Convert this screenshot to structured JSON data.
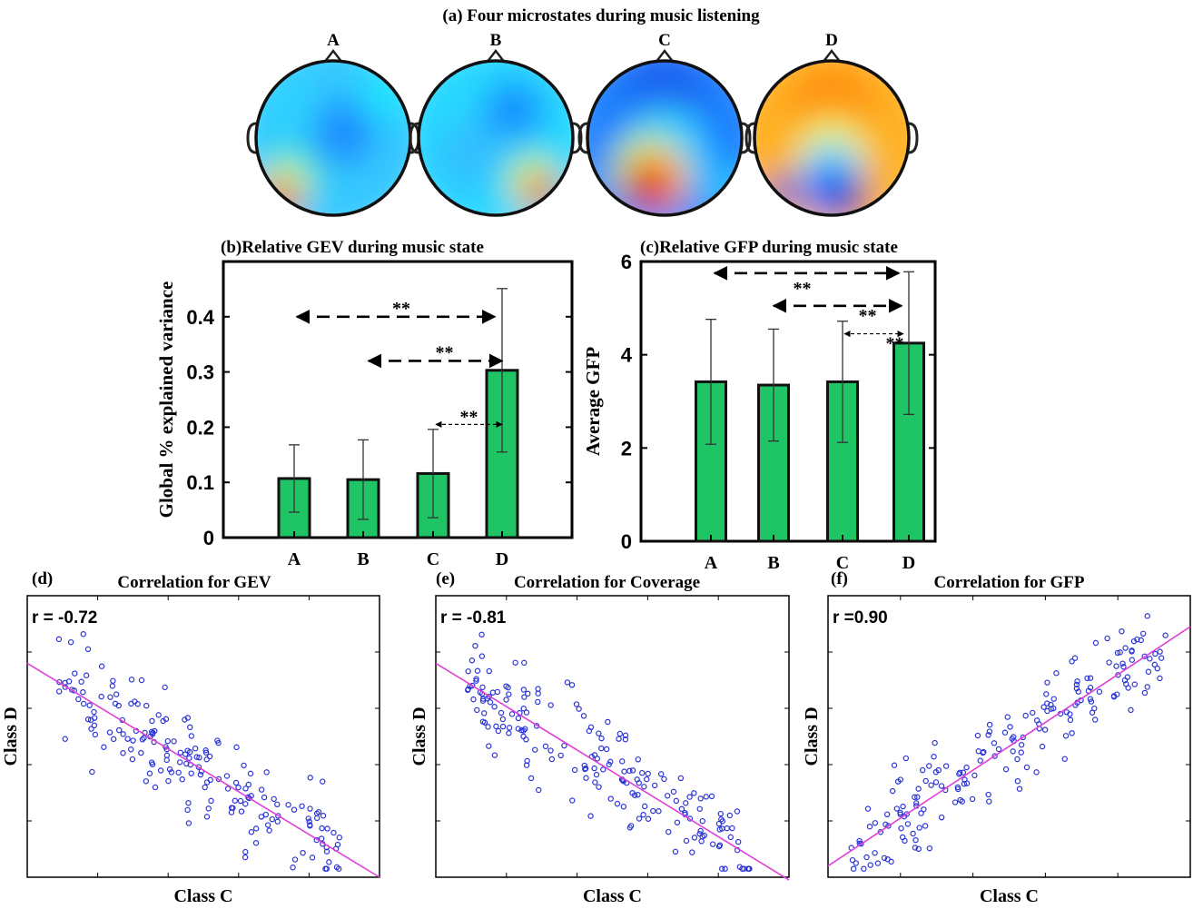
{
  "panel_a": {
    "title": "(a) Four microstates during music listening",
    "maps": [
      {
        "label": "A",
        "description": "blue center, red at lower-left"
      },
      {
        "label": "B",
        "description": "cyan/blue, red at lower-right"
      },
      {
        "label": "C",
        "description": "blue top, red at bottom center"
      },
      {
        "label": "D",
        "description": "orange top, blue bottom"
      }
    ]
  },
  "colors": {
    "bar_fill": "#1fc465",
    "scatter_point": "#2b35d6",
    "fit_line": "#e040d8",
    "axis": "#000000"
  },
  "chart_data": [
    {
      "id": "b",
      "type": "bar",
      "title": "(b)Relative GEV during music state",
      "ylabel": "Global % explained variance",
      "xlabel": "",
      "categories": [
        "A",
        "B",
        "C",
        "D"
      ],
      "values": [
        0.107,
        0.105,
        0.116,
        0.303
      ],
      "errors": [
        0.061,
        0.072,
        0.08,
        0.148
      ],
      "ylim": [
        0,
        0.5
      ],
      "yticks": [
        0,
        0.1,
        0.2,
        0.3,
        0.4
      ],
      "ytick_labels": [
        "0",
        "0.1",
        "0.2",
        "0.3",
        "0.4"
      ],
      "significance": [
        {
          "from": "A",
          "to": "D",
          "label": "**",
          "level": 0.4
        },
        {
          "from": "B",
          "to": "D",
          "label": "**",
          "level": 0.32
        },
        {
          "from": "C",
          "to": "D",
          "label": "**",
          "level": 0.205
        }
      ]
    },
    {
      "id": "c",
      "type": "bar",
      "title": "(c)Relative GFP during music state",
      "ylabel": "Average GFP",
      "xlabel": "",
      "categories": [
        "A",
        "B",
        "C",
        "D"
      ],
      "values": [
        3.42,
        3.35,
        3.42,
        4.25
      ],
      "errors": [
        1.34,
        1.2,
        1.3,
        1.53
      ],
      "ylim": [
        0,
        6
      ],
      "yticks": [
        0,
        2,
        4,
        6
      ],
      "ytick_labels": [
        "0",
        "2",
        "4",
        "6"
      ],
      "significance": [
        {
          "from": "A",
          "to": "D",
          "label": "**",
          "level": 5.75
        },
        {
          "from": "B",
          "to": "D",
          "label": "**",
          "level": 5.05
        },
        {
          "from": "C",
          "to": "D",
          "label": "**",
          "level": 4.45
        }
      ]
    },
    {
      "id": "d",
      "type": "scatter",
      "title": "Correlation for GEV",
      "panel_label": "(d)",
      "xlabel": "Class C",
      "ylabel": "Class D",
      "annotation": "r = -0.72",
      "r": -0.72,
      "xlim": [
        0,
        1
      ],
      "ylim": [
        0,
        1
      ],
      "fit": {
        "slope": -0.76,
        "intercept": 0.76
      },
      "n_points": 190,
      "seed": 11
    },
    {
      "id": "e",
      "type": "scatter",
      "title": "Correlation for Coverage",
      "panel_label": "(e)",
      "xlabel": "Class C",
      "ylabel": "Class D",
      "annotation": "r = -0.81",
      "r": -0.81,
      "xlim": [
        0,
        1
      ],
      "ylim": [
        0,
        1
      ],
      "fit": {
        "slope": -0.77,
        "intercept": 0.76
      },
      "n_points": 190,
      "seed": 23
    },
    {
      "id": "f",
      "type": "scatter",
      "title": "Correlation for GFP",
      "panel_label": "(f)",
      "xlabel": "Class C",
      "ylabel": "Class D",
      "annotation": "r =0.90",
      "r": 0.9,
      "xlim": [
        0,
        1
      ],
      "ylim": [
        0,
        1
      ],
      "fit": {
        "slope": 0.85,
        "intercept": 0.04
      },
      "n_points": 190,
      "seed": 37
    }
  ]
}
